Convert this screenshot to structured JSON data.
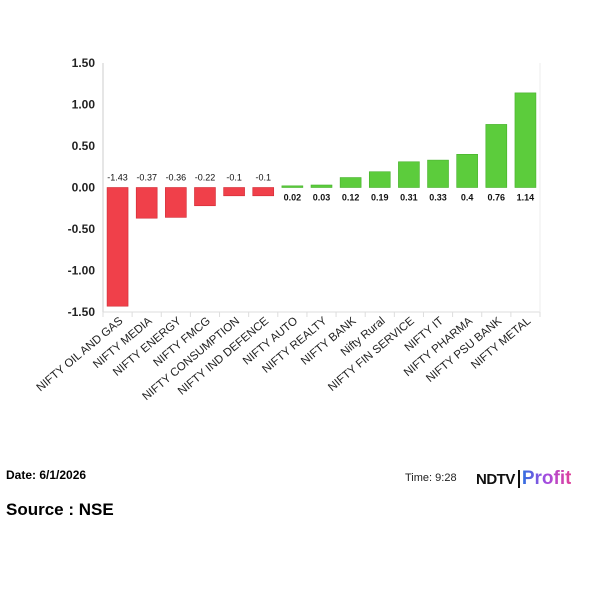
{
  "chart_data": {
    "type": "bar",
    "categories": [
      "NIFTY OIL AND GAS",
      "NIFTY MEDIA",
      "NIFTY ENERGY",
      "NIFTY FMCG",
      "NIFTY CONSUMPTION",
      "NIFTY IND DEFENCE",
      "NIFTY AUTO",
      "NIFTY REALTY",
      "NIFTY BANK",
      "Nifty Rural",
      "NIFTY FIN SERVICE",
      "NIFTY IT",
      "NIFTY PHARMA",
      "NIFTY PSU BANK",
      "NIFTY METAL"
    ],
    "values": [
      -1.43,
      -0.37,
      -0.36,
      -0.22,
      -0.1,
      -0.1,
      0.02,
      0.03,
      0.12,
      0.19,
      0.31,
      0.33,
      0.4,
      0.76,
      1.14
    ],
    "data_labels": [
      "-1.43",
      "-0.37",
      "-0.36",
      "-0.22",
      "-0.1",
      "-0.1",
      "0.02",
      "0.03",
      "0.12",
      "0.19",
      "0.31",
      "0.33",
      "0.4",
      "0.76",
      "1.14"
    ],
    "yticks": [
      "1.50",
      "1.00",
      "0.50",
      "0.00",
      "-0.50",
      "-1.00",
      "-1.50"
    ],
    "ytick_values": [
      1.5,
      1.0,
      0.5,
      0.0,
      -0.5,
      -1.0,
      -1.5
    ],
    "ylim": [
      -1.5,
      1.5
    ],
    "title": "",
    "xlabel": "",
    "ylabel": "",
    "colors": {
      "negative": "#f0404a",
      "positive": "#5ccc3c"
    }
  },
  "footer": {
    "date": "Date: 6/1/2026",
    "source": "Source : NSE",
    "time": "Time: 9:28",
    "logo_ndtv": "NDTV",
    "logo_profit": "Profit"
  }
}
